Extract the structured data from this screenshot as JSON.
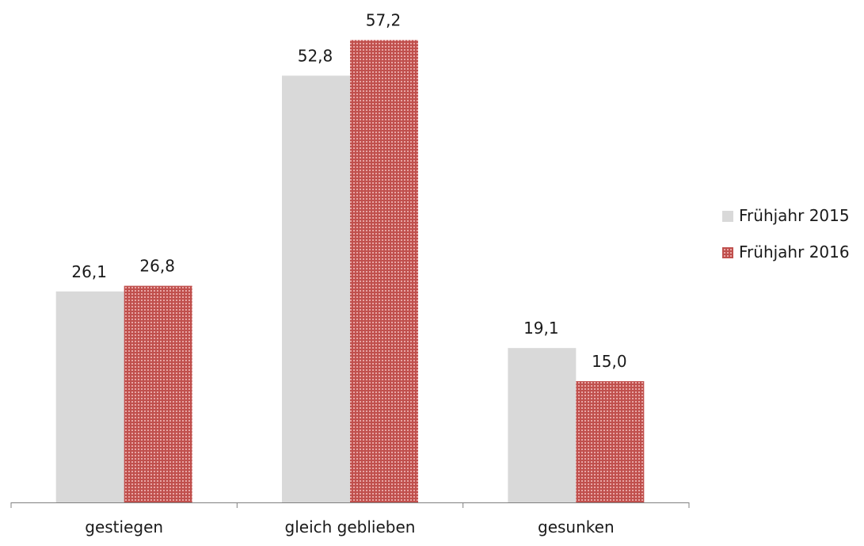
{
  "chart_data": {
    "type": "bar",
    "categories": [
      "gestiegen",
      "gleich geblieben",
      "gesunken"
    ],
    "series": [
      {
        "name": "Frühjahr 2015",
        "values": [
          26.1,
          52.8,
          19.1
        ],
        "labels": [
          "26,1",
          "52,8",
          "19,1"
        ],
        "color": "#d9d9d9",
        "pattern": "solid"
      },
      {
        "name": "Frühjahr 2016",
        "values": [
          26.8,
          57.2,
          15.0
        ],
        "labels": [
          "26,8",
          "57,2",
          "15,0"
        ],
        "color": "#c0504d",
        "pattern": "fine-grid"
      }
    ],
    "ylim": [
      0,
      60
    ],
    "grid": false,
    "legend_position": "right",
    "title": "",
    "xlabel": "",
    "ylabel": ""
  }
}
